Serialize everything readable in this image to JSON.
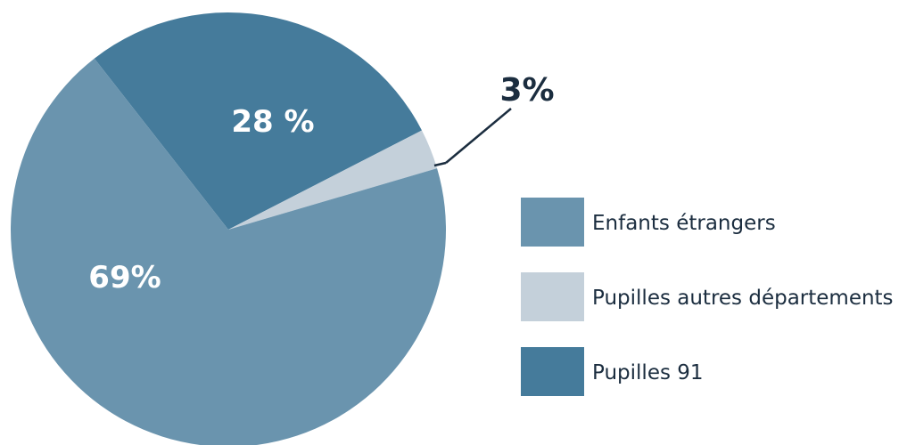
{
  "chart_data": {
    "type": "pie",
    "categories": [
      "Enfants étrangers",
      "Pupilles autres départements",
      "Pupilles 91"
    ],
    "values": [
      69,
      3,
      28
    ],
    "labels": [
      "69%",
      "3%",
      "28 %"
    ],
    "colors": [
      "#6a94ae",
      "#c4d0da",
      "#457b9b"
    ],
    "legend": "right",
    "title": ""
  }
}
